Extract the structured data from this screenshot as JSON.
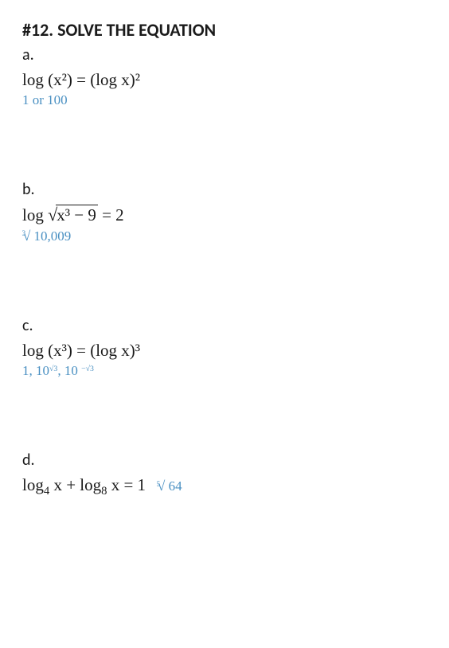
{
  "title": "#12. SOLVE THE EQUATION",
  "problems": {
    "a": {
      "label": "a.",
      "eq_lhs": "log (x²)",
      "eq_eq": " = ",
      "eq_rhs": "(log x)²",
      "answer": "1 or 100"
    },
    "b": {
      "label": "b.",
      "eq_log": "log ",
      "eq_sqrt_arg": "x³ − 9",
      "eq_rhs": " = 2",
      "ans_root_index": "3",
      "ans_root_sym": "√",
      "ans_val": " 10,009"
    },
    "c": {
      "label": "c.",
      "eq_lhs": "log (x³)",
      "eq_eq": " = ",
      "eq_rhs": "(log x)³",
      "ans_part1": "1, 10",
      "ans_exp1": "√3",
      "ans_sep": ", 10 ",
      "ans_exp2": "−√3"
    },
    "d": {
      "label": "d.",
      "eq_t1": "log",
      "eq_s1": "4",
      "eq_t2": " x + log",
      "eq_s2": "8",
      "eq_t3": " x = 1",
      "ans_root_index": "5",
      "ans_root_sym": "√",
      "ans_val": " 64"
    }
  },
  "colors": {
    "text": "#1a1a1a",
    "answer": "#4a90c2",
    "background": "#ffffff"
  },
  "fonts": {
    "title_family": "Calibri, Arial, sans-serif",
    "title_size_pt": 16,
    "title_weight": 700,
    "eq_family": "Georgia, Times New Roman, serif",
    "eq_size_pt": 16,
    "answer_size_pt": 13
  }
}
